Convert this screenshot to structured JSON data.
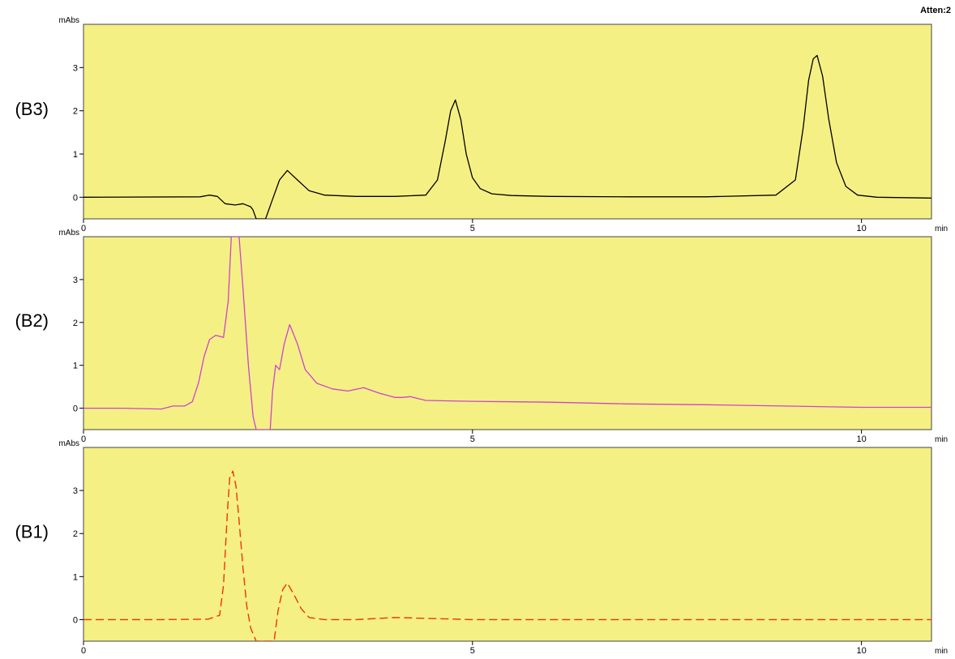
{
  "header": {
    "atten": "Atten:2"
  },
  "colors": {
    "background": "#f5f084",
    "frame": "#444444"
  },
  "chart_data": [
    {
      "panel_label": "(B3)",
      "type": "line",
      "ylabel": "mAbs",
      "xlabel": "min",
      "xlim": [
        0,
        10.9
      ],
      "ylim": [
        -0.5,
        4.0
      ],
      "yticks": [
        0,
        1,
        2,
        3
      ],
      "xticks": [
        0,
        5,
        10
      ],
      "series": [
        {
          "color": "#000000",
          "style": "solid",
          "x": [
            0,
            1.5,
            1.62,
            1.72,
            1.82,
            1.95,
            2.05,
            2.15,
            2.18,
            2.22,
            2.28,
            2.34,
            2.42,
            2.52,
            2.62,
            2.75,
            2.9,
            3.1,
            3.5,
            4.0,
            4.4,
            4.55,
            4.65,
            4.72,
            4.78,
            4.85,
            4.92,
            5.0,
            5.1,
            5.25,
            5.5,
            6.0,
            7.0,
            8.0,
            8.9,
            9.15,
            9.25,
            9.32,
            9.38,
            9.43,
            9.5,
            9.58,
            9.68,
            9.8,
            9.95,
            10.2,
            10.9
          ],
          "y": [
            0.0,
            0.01,
            0.05,
            0.02,
            -0.15,
            -0.18,
            -0.15,
            -0.22,
            -0.3,
            -0.5,
            -0.5,
            -0.5,
            -0.1,
            0.4,
            0.62,
            0.4,
            0.15,
            0.05,
            0.02,
            0.02,
            0.05,
            0.4,
            1.3,
            2.0,
            2.25,
            1.8,
            1.0,
            0.45,
            0.2,
            0.08,
            0.04,
            0.02,
            0.01,
            0.01,
            0.05,
            0.4,
            1.6,
            2.7,
            3.2,
            3.28,
            2.8,
            1.8,
            0.8,
            0.25,
            0.05,
            0.0,
            -0.02
          ]
        }
      ]
    },
    {
      "panel_label": "(B2)",
      "type": "line",
      "ylabel": "mAbs",
      "xlabel": "min",
      "xlim": [
        0,
        10.9
      ],
      "ylim": [
        -0.5,
        4.0
      ],
      "yticks": [
        0,
        1,
        2,
        3
      ],
      "xticks": [
        0,
        5,
        10
      ],
      "series": [
        {
          "color": "#cc44cc",
          "style": "solid",
          "x": [
            0,
            0.5,
            1.0,
            1.15,
            1.3,
            1.4,
            1.48,
            1.55,
            1.62,
            1.7,
            1.8,
            1.86,
            1.9,
            1.95,
            2.0,
            2.05,
            2.12,
            2.18,
            2.22,
            2.25,
            2.3,
            2.35,
            2.4,
            2.43,
            2.47,
            2.52,
            2.58,
            2.65,
            2.75,
            2.85,
            3.0,
            3.2,
            3.4,
            3.6,
            3.8,
            4.0,
            4.1,
            4.2,
            4.4,
            5.0,
            6.0,
            7.0,
            8.0,
            9.0,
            10.0,
            10.9
          ],
          "y": [
            0.0,
            0.0,
            -0.02,
            0.05,
            0.05,
            0.15,
            0.6,
            1.2,
            1.6,
            1.7,
            1.65,
            2.5,
            4.0,
            4.0,
            4.0,
            2.8,
            1.0,
            -0.2,
            -0.5,
            -0.5,
            -0.5,
            -0.5,
            -0.5,
            0.4,
            1.0,
            0.9,
            1.5,
            1.95,
            1.5,
            0.9,
            0.58,
            0.45,
            0.4,
            0.48,
            0.35,
            0.25,
            0.25,
            0.27,
            0.18,
            0.16,
            0.14,
            0.1,
            0.08,
            0.05,
            0.02,
            0.02
          ]
        }
      ]
    },
    {
      "panel_label": "(B1)",
      "type": "line",
      "ylabel": "mAbs",
      "xlabel": "min",
      "xlim": [
        0,
        10.9
      ],
      "ylim": [
        -0.5,
        4.0
      ],
      "yticks": [
        0,
        1,
        2,
        3
      ],
      "xticks": [
        0,
        5,
        10
      ],
      "series": [
        {
          "color": "#ee3311",
          "style": "dashed",
          "x": [
            0,
            1.0,
            1.6,
            1.75,
            1.8,
            1.85,
            1.88,
            1.92,
            1.96,
            2.0,
            2.05,
            2.1,
            2.15,
            2.22,
            2.3,
            2.38,
            2.45,
            2.5,
            2.56,
            2.62,
            2.7,
            2.8,
            2.9,
            3.1,
            3.5,
            4.0,
            5.0,
            6.0,
            7.0,
            8.0,
            9.0,
            10.0,
            10.9
          ],
          "y": [
            0.0,
            0.0,
            0.01,
            0.1,
            0.8,
            2.5,
            3.3,
            3.45,
            3.1,
            2.3,
            1.2,
            0.3,
            -0.2,
            -0.5,
            -0.5,
            -0.5,
            -0.5,
            0.2,
            0.7,
            0.85,
            0.6,
            0.25,
            0.05,
            0.0,
            0.0,
            0.05,
            0.0,
            0.0,
            0.0,
            0.0,
            0.0,
            0.0,
            0.0
          ]
        }
      ]
    }
  ]
}
